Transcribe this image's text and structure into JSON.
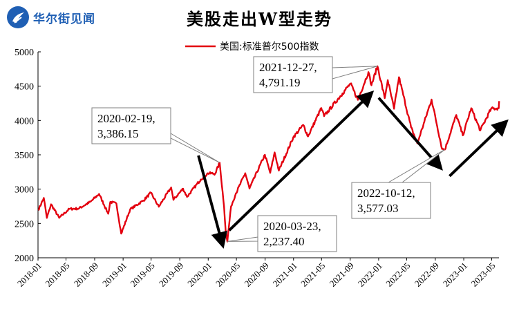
{
  "brand": {
    "name": "华尔街见闻"
  },
  "chart_data": {
    "type": "line",
    "title": "美股走出W型走势",
    "xlabel": "",
    "ylabel": "",
    "legend": {
      "position": "top-center"
    },
    "grid": false,
    "ylim": [
      2000,
      5000
    ],
    "yticks": [
      2000,
      2500,
      3000,
      3500,
      4000,
      4500,
      5000
    ],
    "xlim": [
      "2018-01",
      "2023-06"
    ],
    "xticks": [
      "2018-01",
      "2018-05",
      "2018-09",
      "2019-01",
      "2019-05",
      "2019-09",
      "2020-01",
      "2020-05",
      "2020-09",
      "2021-01",
      "2021-05",
      "2021-09",
      "2022-01",
      "2022-05",
      "2022-09",
      "2023-01",
      "2023-05"
    ],
    "series": [
      {
        "name": "美国:标准普尔500指数",
        "color": "#e3000f",
        "points": [
          [
            "2018-01-02",
            2695
          ],
          [
            "2018-01-26",
            2872
          ],
          [
            "2018-02-08",
            2581
          ],
          [
            "2018-02-26",
            2779
          ],
          [
            "2018-04-02",
            2582
          ],
          [
            "2018-05-15",
            2711
          ],
          [
            "2018-06-25",
            2717
          ],
          [
            "2018-08-15",
            2818
          ],
          [
            "2018-09-20",
            2930
          ],
          [
            "2018-10-29",
            2641
          ],
          [
            "2018-11-07",
            2813
          ],
          [
            "2018-12-03",
            2790
          ],
          [
            "2018-12-24",
            2351
          ],
          [
            "2019-01-31",
            2704
          ],
          [
            "2019-03-29",
            2834
          ],
          [
            "2019-04-30",
            2946
          ],
          [
            "2019-06-03",
            2744
          ],
          [
            "2019-07-26",
            3025
          ],
          [
            "2019-08-05",
            2844
          ],
          [
            "2019-09-15",
            3007
          ],
          [
            "2019-10-02",
            2888
          ],
          [
            "2019-11-30",
            3141
          ],
          [
            "2019-12-31",
            3231
          ],
          [
            "2020-01-31",
            3226
          ],
          [
            "2020-02-19",
            3386
          ],
          [
            "2020-03-09",
            2746
          ],
          [
            "2020-03-16",
            2386
          ],
          [
            "2020-03-23",
            2237
          ],
          [
            "2020-04-08",
            2750
          ],
          [
            "2020-04-29",
            2939
          ],
          [
            "2020-06-08",
            3232
          ],
          [
            "2020-06-26",
            3009
          ],
          [
            "2020-08-31",
            3500
          ],
          [
            "2020-09-23",
            3237
          ],
          [
            "2020-10-12",
            3534
          ],
          [
            "2020-10-30",
            3270
          ],
          [
            "2020-12-31",
            3756
          ],
          [
            "2021-02-12",
            3934
          ],
          [
            "2021-03-04",
            3768
          ],
          [
            "2021-04-30",
            4181
          ],
          [
            "2021-05-12",
            4063
          ],
          [
            "2021-07-30",
            4395
          ],
          [
            "2021-09-02",
            4537
          ],
          [
            "2021-10-04",
            4300
          ],
          [
            "2021-11-18",
            4705
          ],
          [
            "2021-12-01",
            4513
          ],
          [
            "2021-12-27",
            4791
          ],
          [
            "2022-01-27",
            4326
          ],
          [
            "2022-02-09",
            4587
          ],
          [
            "2022-03-08",
            4170
          ],
          [
            "2022-03-29",
            4631
          ],
          [
            "2022-05-20",
            3901
          ],
          [
            "2022-06-16",
            3667
          ],
          [
            "2022-08-16",
            4305
          ],
          [
            "2022-09-30",
            3586
          ],
          [
            "2022-10-12",
            3577
          ],
          [
            "2022-11-30",
            4080
          ],
          [
            "2022-12-28",
            3783
          ],
          [
            "2023-02-02",
            4179
          ],
          [
            "2023-03-13",
            3855
          ],
          [
            "2023-04-28",
            4169
          ],
          [
            "2023-05-31",
            4180
          ],
          [
            "2023-06-02",
            4282
          ]
        ]
      }
    ],
    "annotations": [
      {
        "date": "2021-12-27",
        "value": 4791.19,
        "lines": [
          "2021-12-27,",
          "4,791.19"
        ]
      },
      {
        "date": "2020-02-19",
        "value": 3386.15,
        "lines": [
          "2020-02-19,",
          "3,386.15"
        ]
      },
      {
        "date": "2020-03-23",
        "value": 2237.4,
        "lines": [
          "2020-03-23,",
          "2,237.40"
        ]
      },
      {
        "date": "2022-10-12",
        "value": 3577.03,
        "lines": [
          "2022-10-12,",
          "3,577.03"
        ]
      }
    ],
    "arrows": [
      {
        "from": [
          "2019-11-20",
          3490
        ],
        "to": [
          "2020-03-01",
          2210
        ]
      },
      {
        "from": [
          "2020-03-31",
          2400
        ],
        "to": [
          "2021-11-25",
          4380
        ]
      },
      {
        "from": [
          "2022-01-01",
          4330
        ],
        "to": [
          "2022-09-18",
          3330
        ]
      },
      {
        "from": [
          "2022-11-01",
          3190
        ],
        "to": [
          "2023-06-25",
          3960
        ]
      }
    ]
  }
}
